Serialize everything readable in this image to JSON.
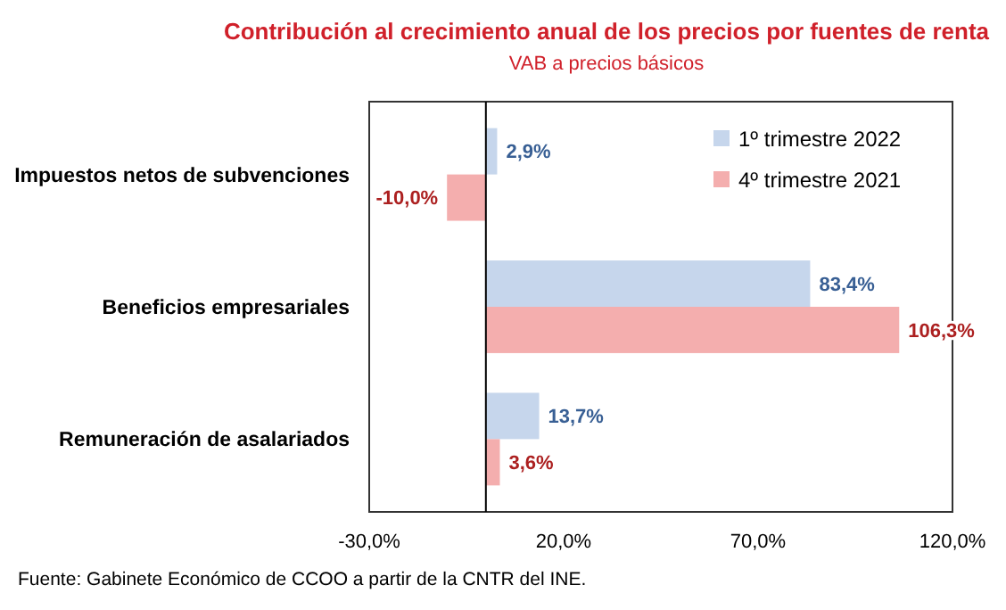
{
  "chart_data": {
    "type": "bar",
    "orientation": "horizontal",
    "title": "Contribución al crecimiento anual de los precios por fuentes de renta",
    "subtitle": "VAB a precios básicos",
    "categories": [
      "Impuestos netos de subvenciones",
      "Beneficios empresariales",
      "Remuneración de asalariados"
    ],
    "series": [
      {
        "name": "1º trimestre 2022",
        "color": "#c6d6ec",
        "values": [
          2.9,
          83.4,
          13.7
        ],
        "value_labels": [
          "2,9%",
          "83,4%",
          "13,7%"
        ]
      },
      {
        "name": "4º trimestre 2021",
        "color": "#f4aeae",
        "values": [
          -10.0,
          106.3,
          3.6
        ],
        "value_labels": [
          "-10,0%",
          "106,3%",
          "3,6%"
        ]
      }
    ],
    "xlim": [
      -30,
      120
    ],
    "xticks": [
      {
        "value": -30,
        "label": "-30,0%"
      },
      {
        "value": 20,
        "label": "20,0%"
      },
      {
        "value": 70,
        "label": "70,0%"
      },
      {
        "value": 120,
        "label": "120,0%"
      }
    ],
    "grid": false,
    "legend": "top right",
    "annotations": [
      "Fuente: Gabinete Económico de CCOO a partir de la CNTR del INE."
    ]
  }
}
